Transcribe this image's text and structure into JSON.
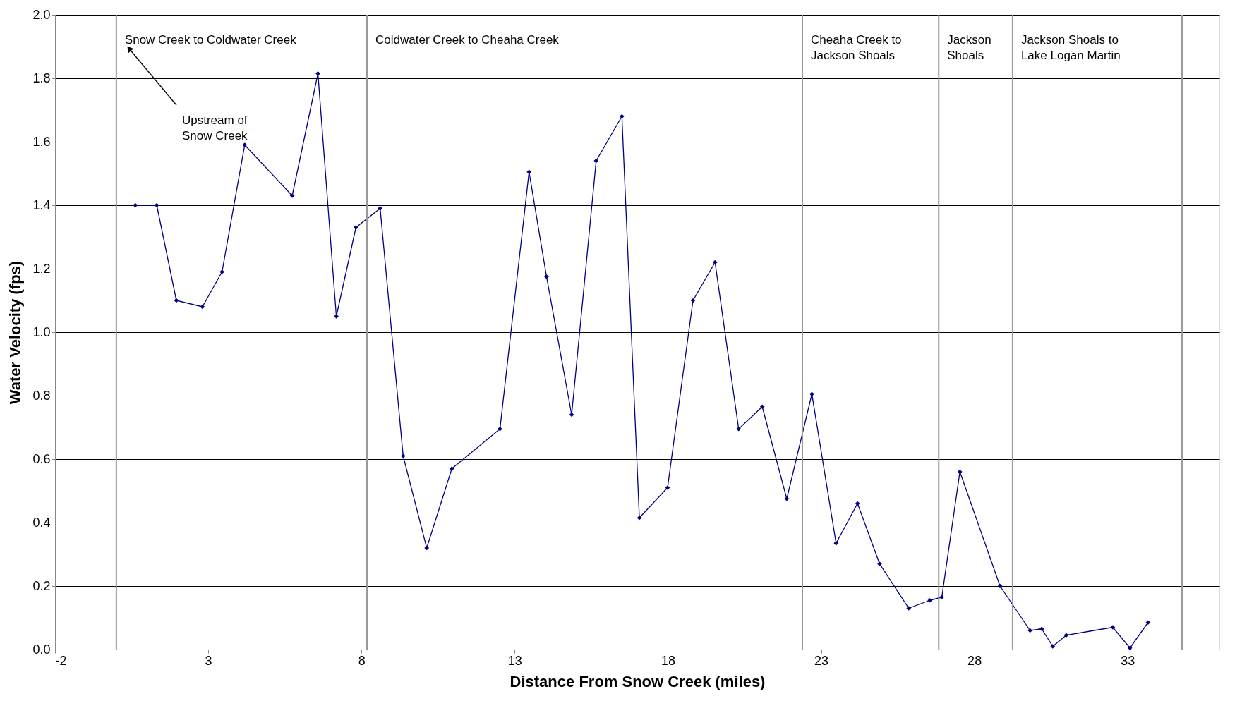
{
  "chart_data": {
    "type": "line",
    "xlabel": "Distance From Snow Creek (miles)",
    "ylabel": "Water Velocity (fps)",
    "xlim": [
      -2,
      36
    ],
    "xticks": [
      -2,
      3,
      8,
      13,
      18,
      23,
      28,
      33
    ],
    "ylim": [
      0,
      2.0
    ],
    "yticks": [
      {
        "value": 0,
        "label": "0.0"
      },
      {
        "value": 0.2,
        "label": "0.2"
      },
      {
        "value": 0.4,
        "label": "0.4"
      },
      {
        "value": 0.6,
        "label": "0.6"
      },
      {
        "value": 0.8,
        "label": "0.8"
      },
      {
        "value": 1.0,
        "label": "1.0"
      },
      {
        "value": 1.2,
        "label": "1.2"
      },
      {
        "value": 1.4,
        "label": "1.4"
      },
      {
        "value": 1.6,
        "label": "1.6"
      },
      {
        "value": 1.8,
        "label": "1.8"
      },
      {
        "value": 2.0,
        "label": "2.0"
      }
    ],
    "grid": "y",
    "marker": "diamond",
    "line_style": "solid",
    "series": [
      {
        "color": "#000080",
        "x": [
          0.62,
          1.32,
          1.96,
          2.81,
          3.45,
          4.19,
          5.74,
          6.58,
          7.18,
          7.82,
          8.61,
          9.36,
          10.13,
          10.95,
          12.52,
          13.47,
          14.04,
          14.86,
          15.66,
          16.5,
          17.07,
          17.99,
          18.82,
          19.54,
          20.31,
          21.08,
          21.88,
          22.7,
          23.49,
          24.19,
          24.91,
          25.86,
          26.55,
          26.94,
          27.53,
          28.84,
          29.82,
          30.2,
          30.56,
          31.0,
          32.52,
          33.08,
          33.67
        ],
        "values": [
          1.4,
          1.4,
          1.1,
          1.08,
          1.19,
          1.59,
          1.43,
          1.815,
          1.05,
          1.33,
          1.39,
          0.61,
          0.32,
          0.57,
          0.695,
          1.505,
          1.175,
          0.74,
          1.54,
          1.68,
          0.415,
          0.51,
          1.1,
          1.22,
          0.695,
          0.765,
          0.475,
          0.805,
          0.335,
          0.46,
          0.27,
          0.13,
          0.155,
          0.165,
          0.56,
          0.2,
          0.06,
          0.065,
          0.01,
          0.045,
          0.07,
          0.005,
          0.085
        ]
      }
    ],
    "ref_lines": [
      {
        "axis": "x",
        "value": 0,
        "color": "#999999",
        "label": "Snow Creek to Coldwater Creek"
      },
      {
        "axis": "x",
        "value": 8.18,
        "color": "#999999",
        "label": "Coldwater Creek to Cheaha Creek"
      },
      {
        "axis": "x",
        "value": 22.39,
        "color": "#999999",
        "label": "Cheaha Creek to\nJackson Shoals"
      },
      {
        "axis": "x",
        "value": 26.84,
        "color": "#999999",
        "label": "Jackson\nShoals"
      },
      {
        "axis": "x",
        "value": 29.25,
        "color": "#999999",
        "label": "Jackson Shoals to\nLake Logan Martin"
      },
      {
        "axis": "x",
        "value": 34.78,
        "color": "#999999"
      }
    ],
    "annotations": [
      "Upstream of\nSnow Creek"
    ]
  }
}
